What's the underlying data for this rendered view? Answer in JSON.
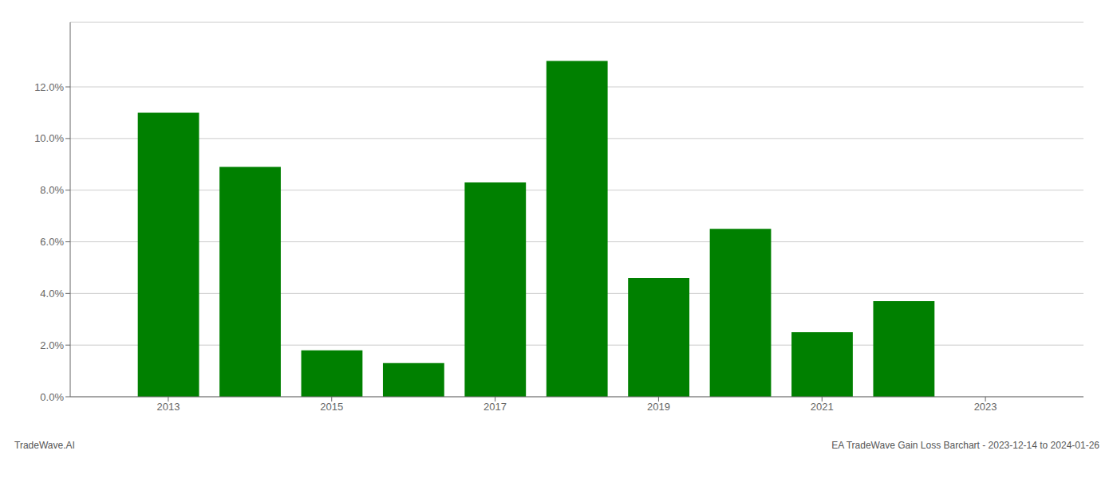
{
  "chart_data": {
    "type": "bar",
    "x": [
      2013,
      2014,
      2015,
      2016,
      2017,
      2018,
      2019,
      2020,
      2021,
      2022
    ],
    "values": [
      0.11,
      0.089,
      0.018,
      0.013,
      0.083,
      0.13,
      0.046,
      0.065,
      0.025,
      0.037
    ],
    "color": "#008000",
    "xlim": [
      2011.8,
      2024.2
    ],
    "xticks": [
      2013,
      2015,
      2017,
      2019,
      2021,
      2023
    ],
    "ylim": [
      0,
      0.145
    ],
    "yticks": [
      {
        "value": 0.0,
        "label": "0.0%"
      },
      {
        "value": 0.02,
        "label": "2.0%"
      },
      {
        "value": 0.04,
        "label": "4.0%"
      },
      {
        "value": 0.06,
        "label": "6.0%"
      },
      {
        "value": 0.08,
        "label": "8.0%"
      },
      {
        "value": 0.1,
        "label": "10.0%"
      },
      {
        "value": 0.12,
        "label": "12.0%"
      }
    ],
    "grid": true,
    "annotations": [
      "TradeWave.AI",
      "EA TradeWave Gain Loss Barchart - 2023-12-14 to 2024-01-26"
    ]
  }
}
